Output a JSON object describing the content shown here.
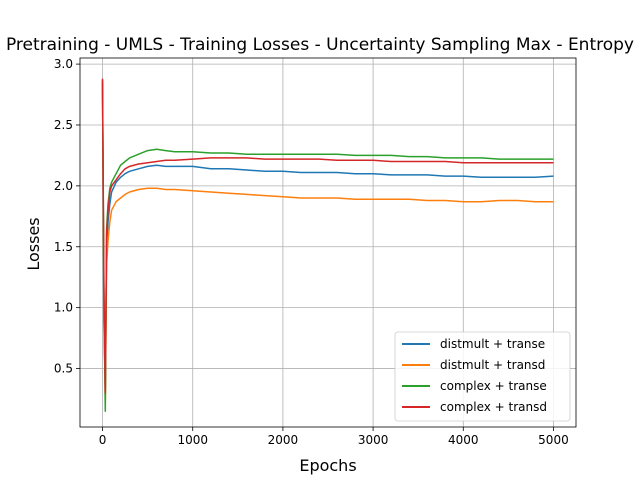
{
  "chart_data": {
    "type": "line",
    "title": "Pretraining - UMLS - Training Losses - Uncertainty Sampling Max - Entropy",
    "xlabel": "Epochs",
    "ylabel": "Losses",
    "xlim": [
      -250,
      5250
    ],
    "ylim": [
      0.02,
      3.05
    ],
    "xticks": [
      0,
      1000,
      2000,
      3000,
      4000,
      5000
    ],
    "yticks": [
      0.5,
      1.0,
      1.5,
      2.0,
      2.5,
      3.0
    ],
    "grid": true,
    "legend_position": "lower-right",
    "series": [
      {
        "name": "distmult + transe",
        "color": "#1f77b4",
        "x": [
          0,
          15,
          30,
          45,
          60,
          80,
          100,
          150,
          200,
          250,
          300,
          400,
          500,
          600,
          700,
          800,
          1000,
          1200,
          1400,
          1600,
          1800,
          2000,
          2200,
          2400,
          2600,
          2800,
          3000,
          3200,
          3400,
          3600,
          3800,
          4000,
          4200,
          4400,
          4600,
          4800,
          5000
        ],
        "values": [
          2.85,
          0.9,
          0.35,
          1.5,
          1.7,
          1.85,
          1.95,
          2.03,
          2.07,
          2.1,
          2.12,
          2.14,
          2.16,
          2.17,
          2.16,
          2.16,
          2.16,
          2.14,
          2.14,
          2.13,
          2.12,
          2.12,
          2.11,
          2.11,
          2.11,
          2.1,
          2.1,
          2.09,
          2.09,
          2.09,
          2.08,
          2.08,
          2.07,
          2.07,
          2.07,
          2.07,
          2.08
        ]
      },
      {
        "name": "distmult + transd",
        "color": "#ff7f0e",
        "x": [
          0,
          15,
          30,
          45,
          60,
          80,
          100,
          150,
          200,
          250,
          300,
          400,
          500,
          600,
          700,
          800,
          1000,
          1200,
          1400,
          1600,
          1800,
          2000,
          2200,
          2400,
          2600,
          2800,
          3000,
          3200,
          3400,
          3600,
          3800,
          4000,
          4200,
          4400,
          4600,
          4800,
          5000
        ],
        "values": [
          2.8,
          1.0,
          0.22,
          1.35,
          1.55,
          1.7,
          1.8,
          1.87,
          1.9,
          1.93,
          1.95,
          1.97,
          1.98,
          1.98,
          1.97,
          1.97,
          1.96,
          1.95,
          1.94,
          1.93,
          1.92,
          1.91,
          1.9,
          1.9,
          1.9,
          1.89,
          1.89,
          1.89,
          1.89,
          1.88,
          1.88,
          1.87,
          1.87,
          1.88,
          1.88,
          1.87,
          1.87
        ]
      },
      {
        "name": "complex + transe",
        "color": "#2ca02c",
        "x": [
          0,
          15,
          30,
          45,
          60,
          80,
          100,
          150,
          200,
          250,
          300,
          400,
          500,
          600,
          700,
          800,
          1000,
          1200,
          1400,
          1600,
          1800,
          2000,
          2200,
          2400,
          2600,
          2800,
          3000,
          3200,
          3400,
          3600,
          3800,
          4000,
          4200,
          4400,
          4600,
          4800,
          5000
        ],
        "values": [
          2.87,
          1.1,
          0.15,
          1.65,
          1.85,
          1.98,
          2.03,
          2.1,
          2.17,
          2.2,
          2.23,
          2.26,
          2.29,
          2.3,
          2.29,
          2.28,
          2.28,
          2.27,
          2.27,
          2.26,
          2.26,
          2.26,
          2.26,
          2.26,
          2.26,
          2.25,
          2.25,
          2.25,
          2.24,
          2.24,
          2.23,
          2.23,
          2.23,
          2.22,
          2.22,
          2.22,
          2.22
        ]
      },
      {
        "name": "complex + transd",
        "color": "#d62728",
        "x": [
          0,
          15,
          30,
          45,
          60,
          80,
          100,
          150,
          200,
          250,
          300,
          400,
          500,
          600,
          700,
          800,
          1000,
          1200,
          1400,
          1600,
          1800,
          2000,
          2200,
          2400,
          2600,
          2800,
          3000,
          3200,
          3400,
          3600,
          3800,
          4000,
          4200,
          4400,
          4600,
          4800,
          5000
        ],
        "values": [
          2.88,
          1.2,
          0.3,
          1.6,
          1.8,
          1.95,
          2.0,
          2.05,
          2.1,
          2.14,
          2.16,
          2.18,
          2.19,
          2.2,
          2.21,
          2.21,
          2.22,
          2.23,
          2.23,
          2.23,
          2.22,
          2.22,
          2.22,
          2.22,
          2.21,
          2.21,
          2.21,
          2.2,
          2.2,
          2.2,
          2.2,
          2.19,
          2.19,
          2.19,
          2.19,
          2.19,
          2.19
        ]
      }
    ]
  }
}
